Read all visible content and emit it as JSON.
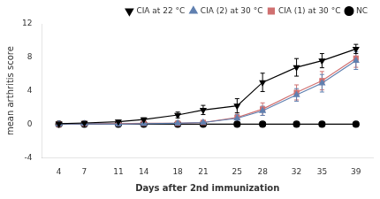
{
  "chart_data": {
    "type": "line",
    "x": [
      4,
      7,
      11,
      14,
      18,
      21,
      25,
      28,
      32,
      35,
      39
    ],
    "series": [
      {
        "name": "NC",
        "color": "#000000",
        "marker": "circle",
        "line_style": "solid",
        "values": [
          0.0,
          0.0,
          0.0,
          0.0,
          0.0,
          0.0,
          0.0,
          0.0,
          0.0,
          0.0,
          0.0
        ],
        "errors": [
          0.0,
          0.0,
          0.0,
          0.0,
          0.0,
          0.0,
          0.0,
          0.0,
          0.0,
          0.0,
          0.0
        ]
      },
      {
        "name": "CIA (1) at 30 °C",
        "color": "#d07070",
        "marker": "square",
        "line_style": "solid",
        "values": [
          0.0,
          0.05,
          0.05,
          0.1,
          0.1,
          0.2,
          0.8,
          1.8,
          3.8,
          5.2,
          7.9
        ],
        "errors": [
          0.0,
          0.05,
          0.05,
          0.1,
          0.15,
          0.25,
          0.55,
          0.75,
          0.9,
          1.1,
          1.1
        ]
      },
      {
        "name": "CIA (2) at 30 °C",
        "color": "#6080b0",
        "marker": "triangle-up",
        "line_style": "solid",
        "values": [
          0.0,
          0.05,
          0.0,
          0.05,
          0.1,
          0.2,
          0.7,
          1.6,
          3.5,
          4.9,
          7.6
        ],
        "errors": [
          0.0,
          0.05,
          0.05,
          0.05,
          0.1,
          0.2,
          0.45,
          0.55,
          0.75,
          1.05,
          1.05
        ]
      },
      {
        "name": "CIA at 22 °C",
        "color": "#000000",
        "marker": "triangle-down",
        "line_style": "solid",
        "values": [
          0.05,
          0.15,
          0.3,
          0.55,
          1.1,
          1.7,
          2.2,
          5.0,
          6.8,
          7.6,
          9.0
        ],
        "errors": [
          0.05,
          0.1,
          0.15,
          0.2,
          0.35,
          0.55,
          0.85,
          1.1,
          1.05,
          0.85,
          0.55
        ]
      }
    ],
    "xlim": [
      2,
      41
    ],
    "xticks": [
      4,
      7,
      11,
      14,
      18,
      21,
      25,
      28,
      32,
      35,
      39
    ],
    "ylim": [
      -4,
      12
    ],
    "yticks": [
      -4,
      0,
      4,
      8,
      12
    ],
    "xlabel": "Days after 2nd immunization",
    "ylabel": "mean arthritis score",
    "grid": false,
    "legend": "upper right"
  }
}
